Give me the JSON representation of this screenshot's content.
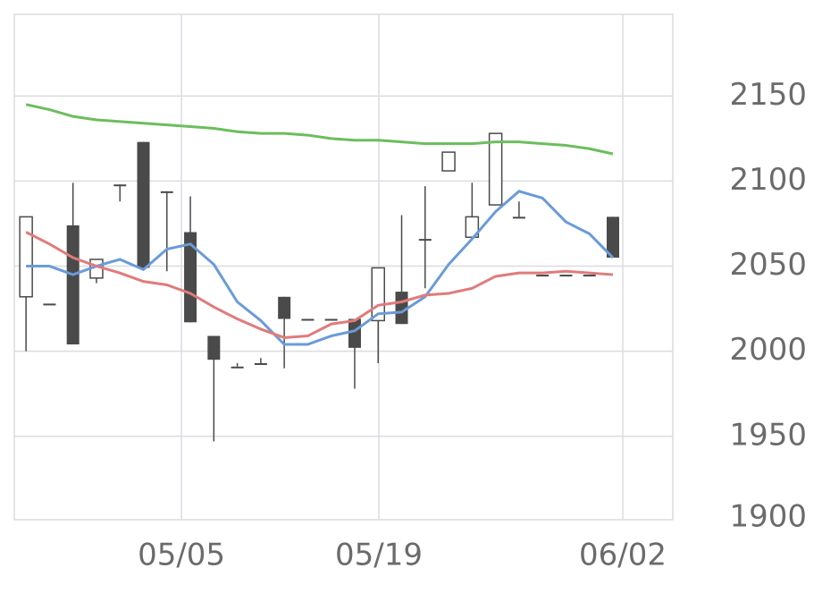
{
  "chart_data": {
    "type": "candlestick",
    "open": [
      2032,
      2028,
      2074,
      2043,
      2098,
      2123,
      2094,
      2070,
      2009,
      1991,
      1993,
      2032,
      2019,
      2019,
      2019,
      2018,
      2035,
      2066,
      2106,
      2067,
      2086,
      2079,
      2045,
      2045,
      2045,
      2079
    ],
    "high": [
      2079,
      2028,
      2099,
      2054,
      2098,
      2123,
      2094,
      2091,
      2009,
      1993,
      1996,
      2032,
      2019,
      2019,
      2019,
      2049,
      2080,
      2097,
      2117,
      2099,
      2128,
      2088,
      2045,
      2045,
      2045,
      2079
    ],
    "low": [
      2000,
      2028,
      2004,
      2040,
      2088,
      2049,
      2047,
      2017,
      1947,
      1991,
      1993,
      1990,
      2019,
      2019,
      1978,
      1993,
      2016,
      2037,
      2106,
      2067,
      2086,
      2079,
      2045,
      2045,
      2045,
      2055
    ],
    "close": [
      2079,
      2028,
      2004,
      2054,
      2098,
      2049,
      2094,
      2017,
      1995,
      1991,
      1993,
      2019,
      2019,
      2019,
      2002,
      2049,
      2016,
      2066,
      2117,
      2079,
      2128,
      2079,
      2045,
      2045,
      2045,
      2055
    ],
    "up_color": "#ffffff",
    "down_color": "#4a4a4a",
    "candle_edge": "#4a4a4a",
    "lines": [
      {
        "color": "#6a9bd8",
        "values": [
          2050,
          2050,
          2045,
          2050,
          2054,
          2048,
          2060,
          2063,
          2051,
          2029,
          2018,
          2004,
          2004,
          2009,
          2012,
          2022,
          2023,
          2032,
          2051,
          2066,
          2082,
          2094,
          2090,
          2076,
          2069,
          2055
        ]
      },
      {
        "color": "#e07b7b",
        "values": [
          2070,
          2063,
          2055,
          2050,
          2046,
          2041,
          2039,
          2034,
          2026,
          2019,
          2013,
          2008,
          2009,
          2016,
          2018,
          2027,
          2029,
          2033,
          2034,
          2037,
          2044,
          2046,
          2046,
          2047,
          2046,
          2045
        ]
      },
      {
        "color": "#6cbd5e",
        "values": [
          2145,
          2142,
          2138,
          2136,
          2135,
          2134,
          2133,
          2132,
          2131,
          2129,
          2128,
          2128,
          2127,
          2125,
          2124,
          2124,
          2123,
          2122,
          2122,
          2122,
          2123,
          2123,
          2122,
          2121,
          2119,
          2116
        ]
      }
    ],
    "xlim": [
      -0.5,
      27.55
    ],
    "xticks": [
      {
        "value": 6.62,
        "label": "05/05"
      },
      {
        "value": 15.03,
        "label": "05/19"
      },
      {
        "value": 25.42,
        "label": "06/02"
      }
    ],
    "ylim": [
      1901,
      2198
    ],
    "yticks": [
      1900,
      1950,
      2000,
      2050,
      2100,
      2150
    ],
    "grid": true
  }
}
